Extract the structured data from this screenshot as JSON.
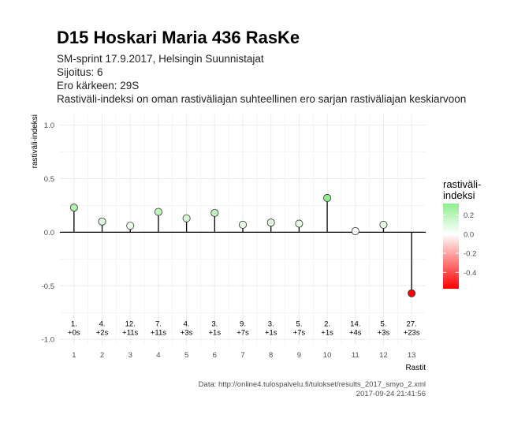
{
  "title": "D15 Hoskari Maria 436 RasKe",
  "subtitle_lines": [
    "SM-sprint 17.9.2017, Helsingin Suunnistajat",
    "Sijoitus: 6",
    "Ero kärkeen: 29S",
    "Rastiväli-indeksi on oman rastiväliajan suhteellinen ero sarjan rastiväliajan keskiarvoon"
  ],
  "caption_lines": [
    "Data: http://online4.tulospalvelu.fi/tulokset/results_2017_smyo_2.xml",
    "2017-09-24 21:41:56"
  ],
  "colors": {
    "positive": "#90ee90",
    "zero": "#ffffff",
    "negative": "#ff0000",
    "grid": "#ebebeb",
    "line": "#000000"
  },
  "chart_data": {
    "type": "scatter",
    "title": "D15 Hoskari Maria 436 RasKe",
    "xlabel": "Rastit",
    "ylabel": "rastiväli-indeksi",
    "xlim": [
      0.5,
      13.5
    ],
    "ylim": [
      -1.05,
      1.1
    ],
    "y_ticks": [
      1.0,
      0.5,
      0.0,
      -0.5,
      -1.0
    ],
    "y_tick_labels": [
      "1.0",
      "0.5",
      "0.0",
      "-0.5",
      "-1.0"
    ],
    "x_ticks": [
      1,
      2,
      3,
      4,
      5,
      6,
      7,
      8,
      9,
      10,
      11,
      12,
      13
    ],
    "x_tick_labels": [
      "1",
      "2",
      "3",
      "4",
      "5",
      "6",
      "7",
      "8",
      "9",
      "10",
      "11",
      "12",
      "13"
    ],
    "grid": true,
    "points": [
      {
        "x": 1,
        "y": 0.23,
        "rank": "1.",
        "diff": "+0s"
      },
      {
        "x": 2,
        "y": 0.1,
        "rank": "4.",
        "diff": "+2s"
      },
      {
        "x": 3,
        "y": 0.06,
        "rank": "12.",
        "diff": "+11s"
      },
      {
        "x": 4,
        "y": 0.19,
        "rank": "7.",
        "diff": "+11s"
      },
      {
        "x": 5,
        "y": 0.13,
        "rank": "4.",
        "diff": "+3s"
      },
      {
        "x": 6,
        "y": 0.18,
        "rank": "3.",
        "diff": "+1s"
      },
      {
        "x": 7,
        "y": 0.07,
        "rank": "9.",
        "diff": "+7s"
      },
      {
        "x": 8,
        "y": 0.09,
        "rank": "3.",
        "diff": "+1s"
      },
      {
        "x": 9,
        "y": 0.08,
        "rank": "5.",
        "diff": "+7s"
      },
      {
        "x": 10,
        "y": 0.32,
        "rank": "2.",
        "diff": "+1s"
      },
      {
        "x": 11,
        "y": 0.01,
        "rank": "14.",
        "diff": "+4s"
      },
      {
        "x": 12,
        "y": 0.07,
        "rank": "5.",
        "diff": "+3s"
      },
      {
        "x": 13,
        "y": -0.57,
        "rank": "27.",
        "diff": "+23s"
      }
    ],
    "label_y": -0.9,
    "legend": {
      "title_lines": [
        "rastiväli-",
        "indeksi"
      ],
      "min": -0.57,
      "max": 0.32,
      "ticks": [
        0.2,
        0.0,
        -0.2,
        -0.4
      ],
      "tick_labels": [
        "0.2",
        "0.0",
        "-0.2",
        "-0.4"
      ],
      "placement": "right"
    }
  }
}
